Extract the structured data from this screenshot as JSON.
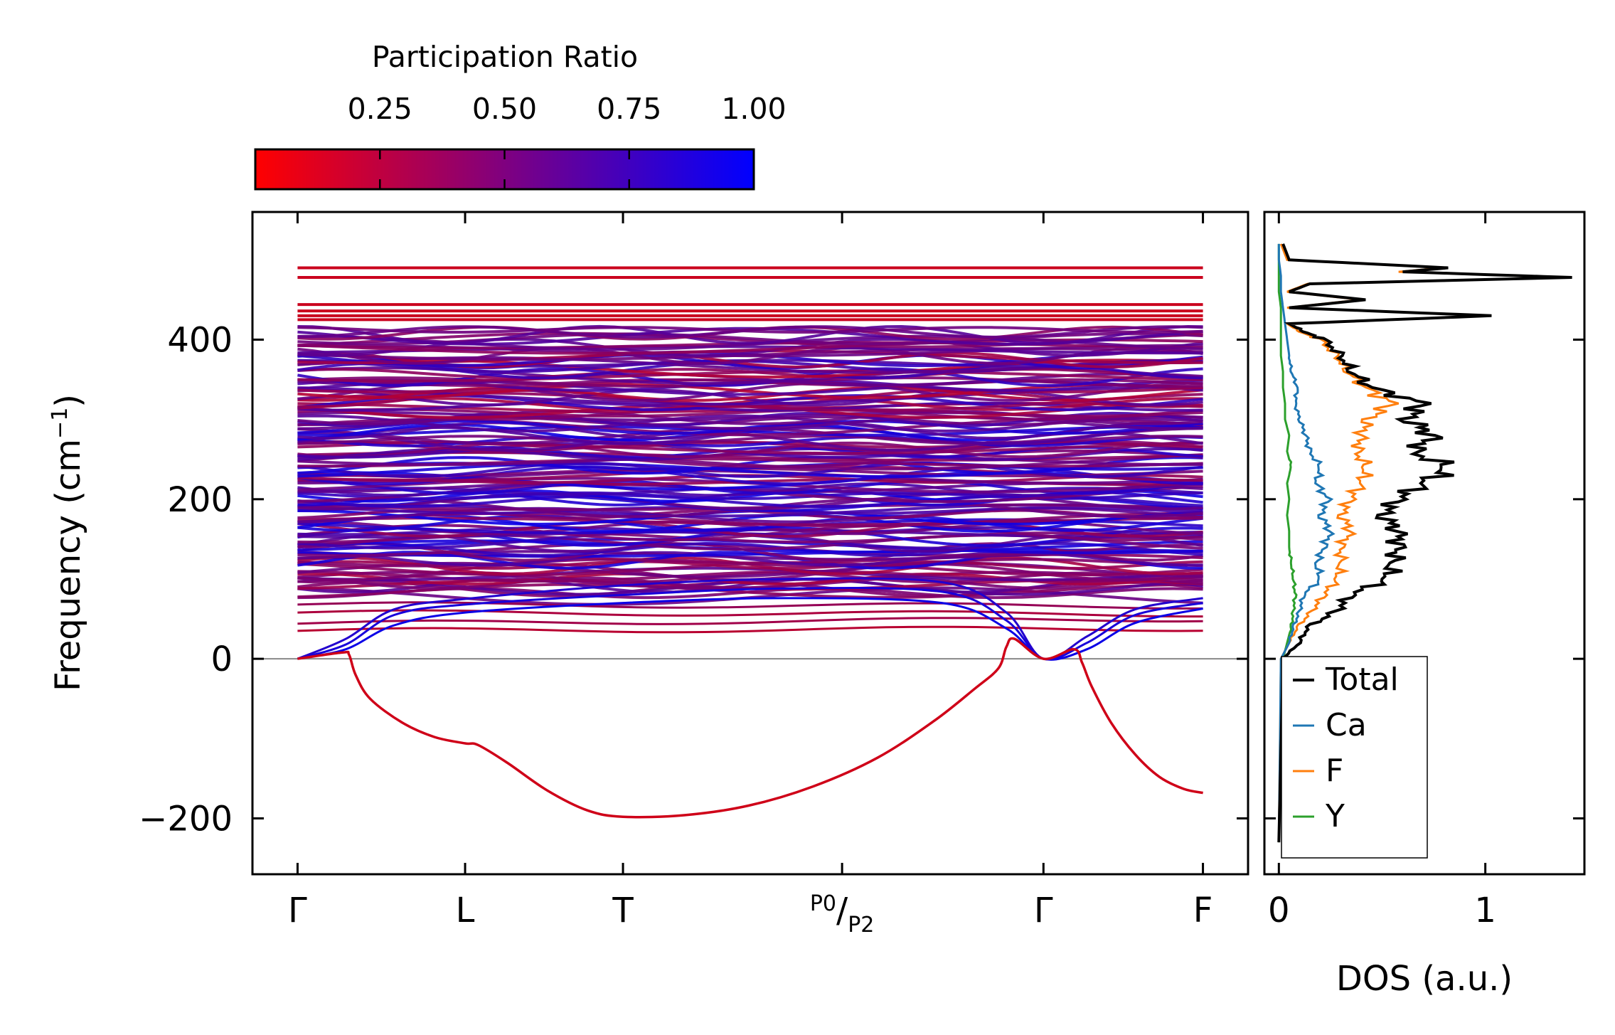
{
  "colorbar": {
    "label": "Participation Ratio",
    "ticks": [
      "0.25",
      "0.50",
      "0.75",
      "1.00"
    ],
    "tick_values": [
      0.25,
      0.5,
      0.75,
      1.0
    ],
    "range": [
      0.0,
      1.0
    ],
    "color_low": "#ff0000",
    "color_high": "#0000ff"
  },
  "chart_data": [
    {
      "type": "line",
      "name": "phonon-band-structure",
      "ylabel_prefix": "Frequency (cm",
      "ylabel_sup": "−1",
      "ylabel_suffix": ")",
      "ylim": [
        -270,
        560
      ],
      "yticks": [
        -200,
        0,
        200,
        400
      ],
      "ytick_labels": [
        "−200",
        "0",
        "200",
        "400"
      ],
      "xlim": [
        -0.28,
        5.9
      ],
      "kpoints": [
        {
          "label": "Γ",
          "x": 0
        },
        {
          "label": "L",
          "x": 1.04
        },
        {
          "label": "T",
          "x": 2.02
        },
        {
          "label": "P",
          "sub1": "0",
          "sub2": "2",
          "x": 3.38
        },
        {
          "label": "Γ",
          "x": 4.63
        },
        {
          "label": "F",
          "x": 5.62
        }
      ],
      "zero_line": 0,
      "flat_bands_high": [
        490,
        478,
        444,
        436,
        430,
        425
      ],
      "band_density_range": [
        80,
        412
      ],
      "soft_mode": {
        "x": [
          0,
          0.28,
          0.32,
          0.36,
          0.45,
          0.65,
          0.85,
          1.04,
          1.12,
          1.3,
          1.55,
          1.8,
          2.02,
          2.4,
          2.8,
          3.2,
          3.6,
          3.95,
          4.2,
          4.35,
          4.4,
          4.45,
          4.63,
          4.82,
          4.87,
          4.93,
          5.05,
          5.2,
          5.35,
          5.5,
          5.62
        ],
        "y": [
          0,
          8,
          5,
          -20,
          -50,
          -80,
          -98,
          -106,
          -108,
          -130,
          -165,
          -190,
          -198,
          -196,
          -184,
          -160,
          -124,
          -78,
          -38,
          -12,
          15,
          25,
          0,
          12,
          -5,
          -35,
          -80,
          -120,
          -148,
          -163,
          -168
        ],
        "participation": 0.1
      },
      "acoustic_modes": [
        {
          "x": [
            0,
            0.3,
            0.6,
            1.04,
            2.02,
            3.0,
            4.0,
            4.4,
            4.63,
            4.9,
            5.2,
            5.62
          ],
          "y": [
            0,
            12,
            42,
            58,
            70,
            76,
            70,
            38,
            0,
            12,
            45,
            63
          ],
          "participation": 0.95
        },
        {
          "x": [
            0,
            0.3,
            0.6,
            1.04,
            2.02,
            3.0,
            4.0,
            4.4,
            4.63,
            4.9,
            5.2,
            5.62
          ],
          "y": [
            0,
            18,
            55,
            68,
            80,
            88,
            84,
            48,
            0,
            20,
            55,
            70
          ],
          "participation": 0.9
        },
        {
          "x": [
            0,
            0.3,
            0.6,
            1.04,
            2.02,
            3.0,
            4.0,
            4.4,
            4.63,
            4.9,
            5.2,
            5.62
          ],
          "y": [
            0,
            25,
            62,
            75,
            92,
            100,
            96,
            58,
            0,
            28,
            62,
            76
          ],
          "participation": 0.85
        }
      ],
      "optic_low_modes": [
        {
          "y0": 35,
          "y1": 38,
          "participation": 0.2
        },
        {
          "y0": 44,
          "y1": 50,
          "participation": 0.3
        },
        {
          "y0": 58,
          "y1": 56,
          "participation": 0.25
        },
        {
          "y0": 68,
          "y1": 66,
          "participation": 0.35
        }
      ]
    },
    {
      "type": "line",
      "name": "density-of-states",
      "xlabel": "DOS (a.u.)",
      "xlim": [
        -0.07,
        1.48
      ],
      "xticks": [
        0,
        1
      ],
      "xtick_labels": [
        "0",
        "1"
      ],
      "ylim": [
        -270,
        560
      ],
      "series": [
        {
          "name": "Total",
          "color": "#000000",
          "y": [
            -230,
            0,
            20,
            40,
            60,
            80,
            100,
            120,
            140,
            160,
            180,
            200,
            220,
            240,
            260,
            280,
            300,
            320,
            340,
            360,
            380,
            400,
            410,
            420,
            430,
            440,
            450,
            460,
            470,
            478,
            485,
            490,
            500,
            520
          ],
          "values": [
            0,
            0.02,
            0.1,
            0.14,
            0.28,
            0.35,
            0.52,
            0.55,
            0.58,
            0.58,
            0.5,
            0.58,
            0.7,
            0.82,
            0.65,
            0.75,
            0.62,
            0.7,
            0.45,
            0.35,
            0.3,
            0.22,
            0.12,
            0.05,
            1.03,
            0.05,
            0.42,
            0.05,
            0.15,
            1.42,
            0.6,
            0.82,
            0.05,
            0.02
          ]
        },
        {
          "name": "Ca",
          "color": "#1f77b4",
          "y": [
            -230,
            0,
            20,
            40,
            60,
            80,
            100,
            120,
            140,
            160,
            180,
            200,
            220,
            240,
            260,
            280,
            300,
            320,
            340,
            360,
            380,
            400,
            420,
            440,
            460,
            480,
            500,
            520
          ],
          "values": [
            0,
            0.01,
            0.05,
            0.07,
            0.1,
            0.12,
            0.2,
            0.18,
            0.22,
            0.25,
            0.2,
            0.24,
            0.18,
            0.2,
            0.15,
            0.13,
            0.1,
            0.08,
            0.09,
            0.06,
            0.05,
            0.04,
            0.03,
            0.02,
            0.01,
            0.01,
            0.0,
            0.0
          ]
        },
        {
          "name": "F",
          "color": "#ff7f0e",
          "y": [
            -230,
            0,
            20,
            40,
            60,
            80,
            100,
            120,
            140,
            160,
            180,
            200,
            220,
            240,
            260,
            280,
            300,
            320,
            340,
            360,
            380,
            400,
            410,
            420,
            430,
            440,
            450,
            460,
            470,
            478,
            485,
            490,
            500,
            520
          ],
          "values": [
            0,
            0.01,
            0.05,
            0.09,
            0.16,
            0.22,
            0.28,
            0.3,
            0.3,
            0.35,
            0.3,
            0.35,
            0.4,
            0.42,
            0.38,
            0.4,
            0.43,
            0.55,
            0.42,
            0.33,
            0.28,
            0.2,
            0.1,
            0.04,
            1.02,
            0.04,
            0.4,
            0.04,
            0.14,
            1.4,
            0.58,
            0.8,
            0.04,
            0.01
          ]
        },
        {
          "name": "Y",
          "color": "#2ca02c",
          "y": [
            -230,
            0,
            20,
            40,
            60,
            80,
            100,
            120,
            140,
            160,
            180,
            200,
            220,
            240,
            260,
            280,
            300,
            320,
            340,
            360,
            380,
            400,
            420,
            440,
            460,
            480,
            500,
            520
          ],
          "values": [
            0,
            0.02,
            0.04,
            0.06,
            0.07,
            0.08,
            0.07,
            0.06,
            0.05,
            0.05,
            0.04,
            0.05,
            0.04,
            0.06,
            0.04,
            0.05,
            0.03,
            0.03,
            0.02,
            0.02,
            0.01,
            0.01,
            0.01,
            0.01,
            0.0,
            0.0,
            0.0,
            0.0
          ]
        }
      ],
      "legend": {
        "location": "lower-left",
        "entries": [
          "Total",
          "Ca",
          "F",
          "Y"
        ]
      }
    }
  ]
}
